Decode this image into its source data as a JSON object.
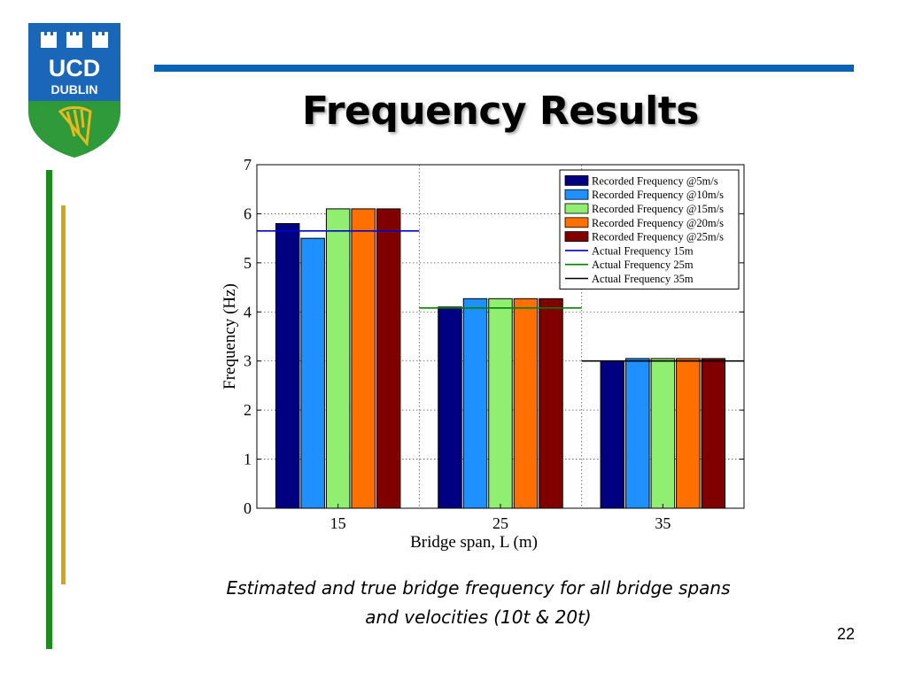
{
  "logo": {
    "text_top": "UCD",
    "text_bottom": "DUBLIN"
  },
  "slide": {
    "title": "Frequency Results",
    "caption_line1": "Estimated and true bridge frequency for all bridge spans",
    "caption_line2": "and velocities (10t & 20t)",
    "page_number": "22"
  },
  "colors": {
    "rule_blue": "#0a63b5",
    "side_green": "#1f8a1f",
    "side_gold": "#d4a514",
    "logo_blue": "#1a66b8",
    "logo_green": "#2e9a3a",
    "logo_gold": "#e8b820"
  },
  "chart_data": {
    "type": "bar",
    "categories": [
      "15",
      "25",
      "35"
    ],
    "xlabel": "Bridge span, L (m)",
    "ylabel": "Frequency (Hz)",
    "ylim": [
      0,
      7
    ],
    "yticks": [
      "0",
      "1",
      "2",
      "3",
      "4",
      "5",
      "6",
      "7"
    ],
    "grid": true,
    "legend_position": "top-right",
    "series": [
      {
        "name": "Recorded Frequency @5m/s",
        "color": "#000080",
        "values": [
          5.8,
          4.1,
          3.0
        ]
      },
      {
        "name": "Recorded Frequency @10m/s",
        "color": "#1e90ff",
        "values": [
          5.5,
          4.27,
          3.05
        ]
      },
      {
        "name": "Recorded Frequency @15m/s",
        "color": "#90ee70",
        "values": [
          6.1,
          4.27,
          3.05
        ]
      },
      {
        "name": "Recorded Frequency @20m/s",
        "color": "#ff7000",
        "values": [
          6.1,
          4.27,
          3.05
        ]
      },
      {
        "name": "Recorded Frequency @25m/s",
        "color": "#800000",
        "values": [
          6.1,
          4.27,
          3.05
        ]
      }
    ],
    "reference_lines": [
      {
        "name": "Actual Frequency 15m",
        "color": "#0000cc",
        "value": 5.65,
        "category": "15"
      },
      {
        "name": "Actual Frequency 25m",
        "color": "#008000",
        "value": 4.08,
        "category": "25"
      },
      {
        "name": "Actual Frequency 35m",
        "color": "#000000",
        "value": 3.0,
        "category": "35"
      }
    ]
  }
}
